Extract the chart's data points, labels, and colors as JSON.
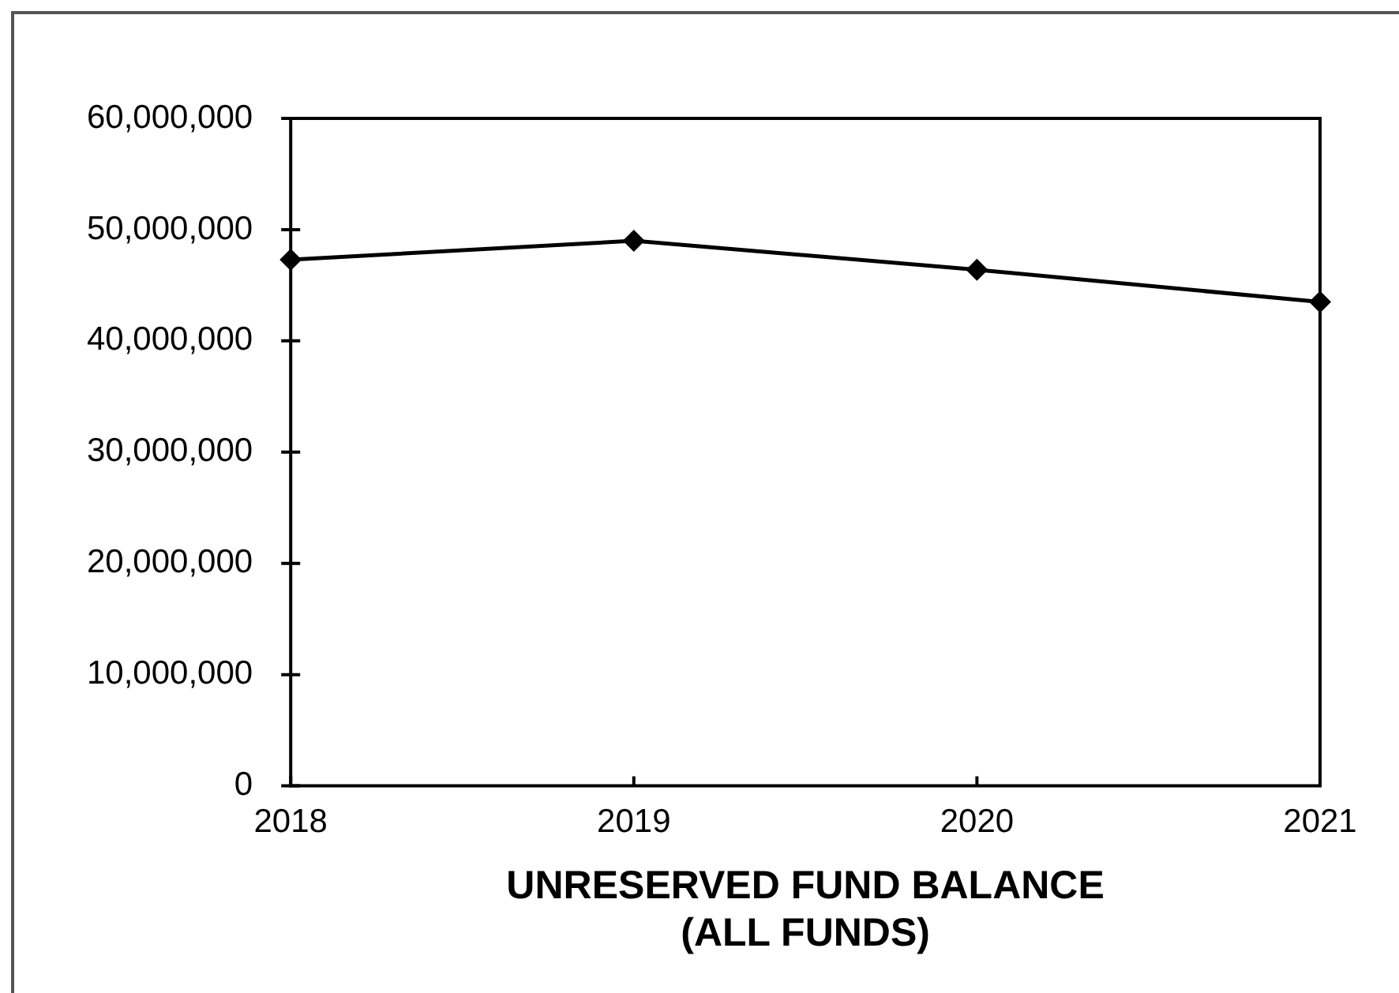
{
  "chart_data": {
    "type": "line",
    "title": "UNRESERVED FUND BALANCE (ALL FUNDS)",
    "categories": [
      "2018",
      "2019",
      "2020",
      "2021"
    ],
    "values": [
      47300000,
      49000000,
      46400000,
      43500000
    ],
    "color": "#000000",
    "marker": "diamond",
    "line_style": "solid",
    "ylim": [
      0,
      60000000
    ],
    "yticks": [
      {
        "value": 0,
        "label": "0"
      },
      {
        "value": 10000000,
        "label": "10,000,000"
      },
      {
        "value": 20000000,
        "label": "20,000,000"
      },
      {
        "value": 30000000,
        "label": "30,000,000"
      },
      {
        "value": 40000000,
        "label": "40,000,000"
      },
      {
        "value": 50000000,
        "label": "50,000,000"
      },
      {
        "value": 60000000,
        "label": "60,000,000"
      }
    ]
  }
}
